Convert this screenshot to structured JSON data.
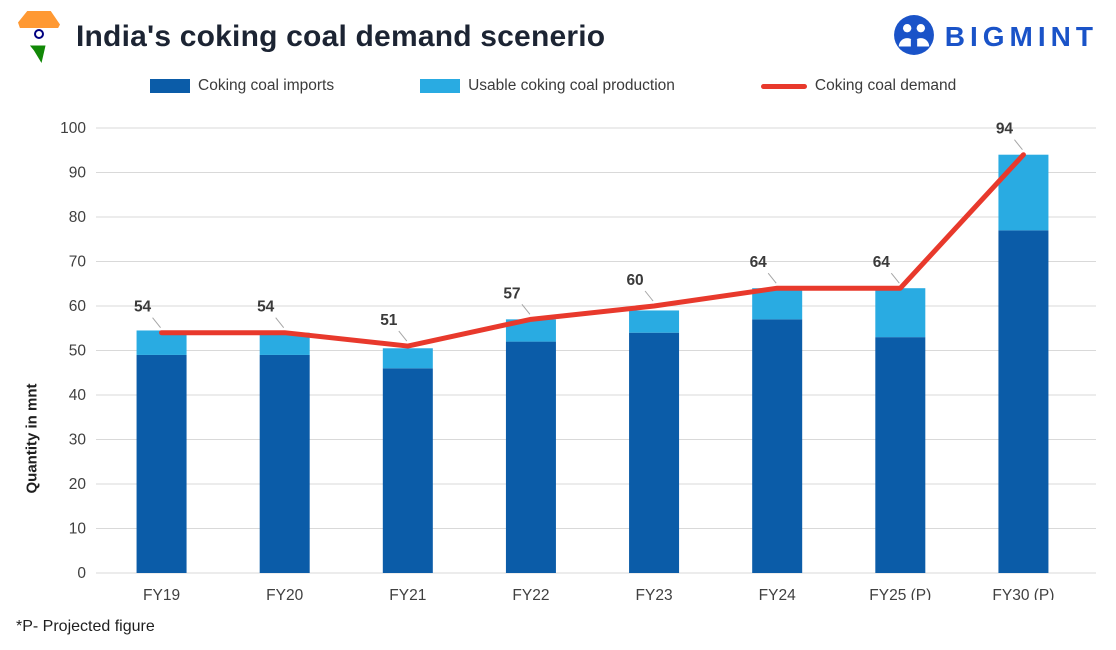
{
  "header": {
    "title": "India's coking coal demand scenerio",
    "logo_text": "BIGMINT",
    "logo_color": "#1a53c8",
    "flag_icon": "india-flag-map"
  },
  "legend": [
    {
      "label": "Coking coal imports",
      "color": "#0b5ca8",
      "swatch": "box"
    },
    {
      "label": "Usable coking coal production",
      "color": "#29abe2",
      "swatch": "box"
    },
    {
      "label": "Coking coal demand",
      "color": "#e8392c",
      "swatch": "line"
    }
  ],
  "chart_data": {
    "type": "bar",
    "subtype": "stacked-bars-with-line",
    "categories": [
      "FY19",
      "FY20",
      "FY21",
      "FY22",
      "FY23",
      "FY24",
      "FY25 (P)",
      "FY30 (P)"
    ],
    "series": [
      {
        "name": "Coking coal imports",
        "type": "bar",
        "color": "#0b5ca8",
        "values": [
          49,
          49,
          46,
          52,
          54,
          57,
          53,
          77
        ]
      },
      {
        "name": "Usable coking coal production",
        "type": "bar",
        "color": "#29abe2",
        "values": [
          5.5,
          5,
          4.5,
          5,
          5,
          7,
          11,
          17
        ]
      },
      {
        "name": "Coking coal demand",
        "type": "line",
        "color": "#e8392c",
        "values": [
          54,
          54,
          51,
          57,
          60,
          64,
          64,
          94
        ],
        "labels": [
          "54",
          "54",
          "51",
          "57",
          "60",
          "64",
          "64",
          "94"
        ]
      }
    ],
    "title": "India's coking coal demand scenerio",
    "xlabel": "",
    "ylabel": "Quantity in mnt",
    "ylim": [
      0,
      100
    ],
    "ytick_step": 10,
    "grid": true,
    "gridline_color": "#d9d9d9",
    "tick_label_color": "#404040",
    "data_label_color": "#3a3a3a",
    "legend_position": "top"
  },
  "footnote": "*P- Projected figure"
}
